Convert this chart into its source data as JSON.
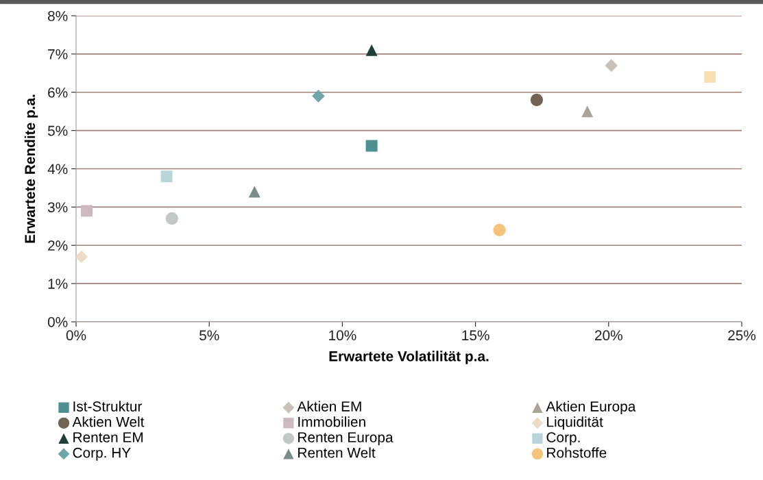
{
  "chart_data": {
    "type": "scatter",
    "xlabel": "Erwartete Volatilität p.a.",
    "ylabel": "Erwartete Rendite p.a.",
    "xlim": [
      0,
      25
    ],
    "ylim": [
      0,
      8
    ],
    "xticks": [
      {
        "value": 0,
        "label": "0%"
      },
      {
        "value": 5,
        "label": "5%"
      },
      {
        "value": 10,
        "label": "10%"
      },
      {
        "value": 15,
        "label": "15%"
      },
      {
        "value": 20,
        "label": "20%"
      },
      {
        "value": 25,
        "label": "25%"
      }
    ],
    "yticks": [
      {
        "value": 0,
        "label": "0%"
      },
      {
        "value": 1,
        "label": "1%"
      },
      {
        "value": 2,
        "label": "2%"
      },
      {
        "value": 3,
        "label": "3%"
      },
      {
        "value": 4,
        "label": "4%"
      },
      {
        "value": 5,
        "label": "5%"
      },
      {
        "value": 6,
        "label": "6%"
      },
      {
        "value": 7,
        "label": "7%"
      },
      {
        "value": 8,
        "label": "8%"
      }
    ],
    "grid": "y",
    "legend": "bottom",
    "series": [
      {
        "name": "Ist-Struktur",
        "color": "#4e8f91",
        "marker": "square",
        "x": [
          11.1
        ],
        "values": [
          4.6
        ]
      },
      {
        "name": "Aktien EM",
        "color": "#c9c1b6",
        "marker": "diamond",
        "x": [
          20.1
        ],
        "values": [
          6.7
        ]
      },
      {
        "name": "Aktien Europa",
        "color": "#aaa598",
        "marker": "triangle",
        "x": [
          19.2
        ],
        "values": [
          5.5
        ]
      },
      {
        "name": "Aktien Welt",
        "color": "#716353",
        "marker": "circle",
        "x": [
          17.3
        ],
        "values": [
          5.8
        ]
      },
      {
        "name": "Immobilien",
        "color": "#cdb9c0",
        "marker": "square",
        "x": [
          0.4
        ],
        "values": [
          2.9
        ]
      },
      {
        "name": "Liquidität",
        "color": "#ecdcc6",
        "marker": "diamond",
        "x": [
          0.2
        ],
        "values": [
          1.7
        ]
      },
      {
        "name": "Renten EM",
        "color": "#1f3f38",
        "marker": "triangle",
        "x": [
          11.1
        ],
        "values": [
          7.1
        ]
      },
      {
        "name": "Renten Europa",
        "color": "#c3c7c5",
        "marker": "circle",
        "x": [
          3.6
        ],
        "values": [
          2.7
        ]
      },
      {
        "name": "Corp.",
        "color": "#b9d5d7",
        "marker": "square",
        "x": [
          3.4
        ],
        "values": [
          3.8
        ]
      },
      {
        "name": "Corp. HY",
        "color": "#70a6a9",
        "marker": "diamond",
        "x": [
          9.1
        ],
        "values": [
          5.9
        ]
      },
      {
        "name": "Renten Welt",
        "color": "#7b8d89",
        "marker": "triangle",
        "x": [
          6.7
        ],
        "values": [
          3.4
        ]
      },
      {
        "name": "Rohstoffe",
        "color": "#f4c47c",
        "marker": "circle",
        "x": [
          15.9
        ],
        "values": [
          2.4
        ]
      },
      {
        "color": "#f9e0b3",
        "marker": "square",
        "x": [
          23.8
        ],
        "values": [
          6.4
        ]
      }
    ]
  }
}
